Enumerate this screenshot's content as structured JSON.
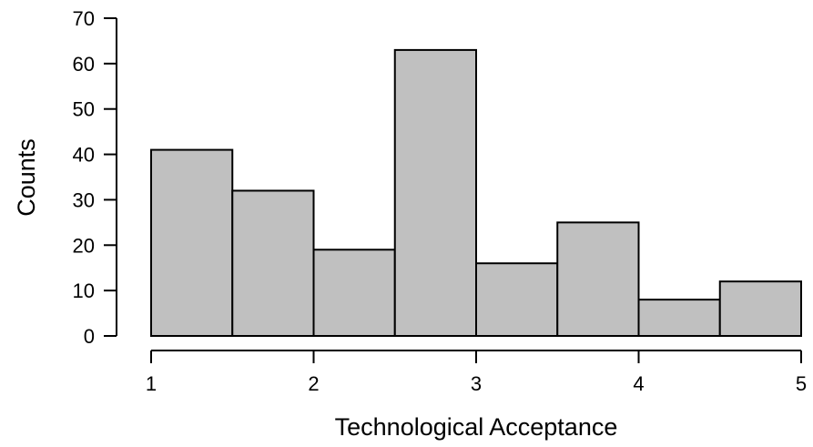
{
  "chart_data": {
    "type": "bar",
    "subtype": "histogram",
    "xlabel": "Technological Acceptance",
    "ylabel": "Counts",
    "xlim": [
      1,
      5
    ],
    "ylim": [
      0,
      70
    ],
    "xticks": [
      1,
      2,
      3,
      4,
      5
    ],
    "yticks": [
      0,
      10,
      20,
      30,
      40,
      50,
      60,
      70
    ],
    "bins": [
      {
        "start": 1.0,
        "end": 1.5,
        "count": 41
      },
      {
        "start": 1.5,
        "end": 2.0,
        "count": 32
      },
      {
        "start": 2.0,
        "end": 2.5,
        "count": 19
      },
      {
        "start": 2.5,
        "end": 3.0,
        "count": 63
      },
      {
        "start": 3.0,
        "end": 3.5,
        "count": 16
      },
      {
        "start": 3.5,
        "end": 4.0,
        "count": 25
      },
      {
        "start": 4.0,
        "end": 4.5,
        "count": 8
      },
      {
        "start": 4.5,
        "end": 5.0,
        "count": 12
      }
    ],
    "bar_color": "#c0c0c0",
    "edge_color": "#000000",
    "grid": false
  }
}
